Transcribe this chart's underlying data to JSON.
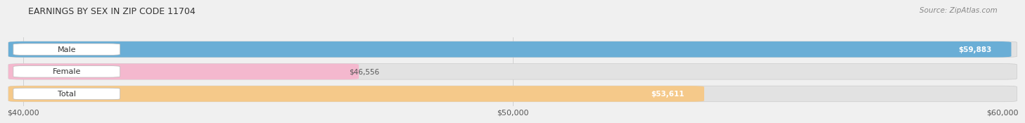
{
  "title": "EARNINGS BY SEX IN ZIP CODE 11704",
  "source": "Source: ZipAtlas.com",
  "categories": [
    "Male",
    "Female",
    "Total"
  ],
  "values": [
    59883,
    46556,
    53611
  ],
  "bar_colors": [
    "#6aaed6",
    "#f4b8ce",
    "#f5c98a"
  ],
  "label_values": [
    "$59,883",
    "$46,556",
    "$53,611"
  ],
  "xmin": 40000,
  "xmax": 60000,
  "xticks": [
    40000,
    50000,
    60000
  ],
  "xtick_labels": [
    "$40,000",
    "$50,000",
    "$60,000"
  ],
  "bar_height": 0.62,
  "background_color": "#f0f0f0",
  "bar_bg_color": "#e2e2e2",
  "label_inside_color": "white",
  "label_outside_color": "#555555"
}
